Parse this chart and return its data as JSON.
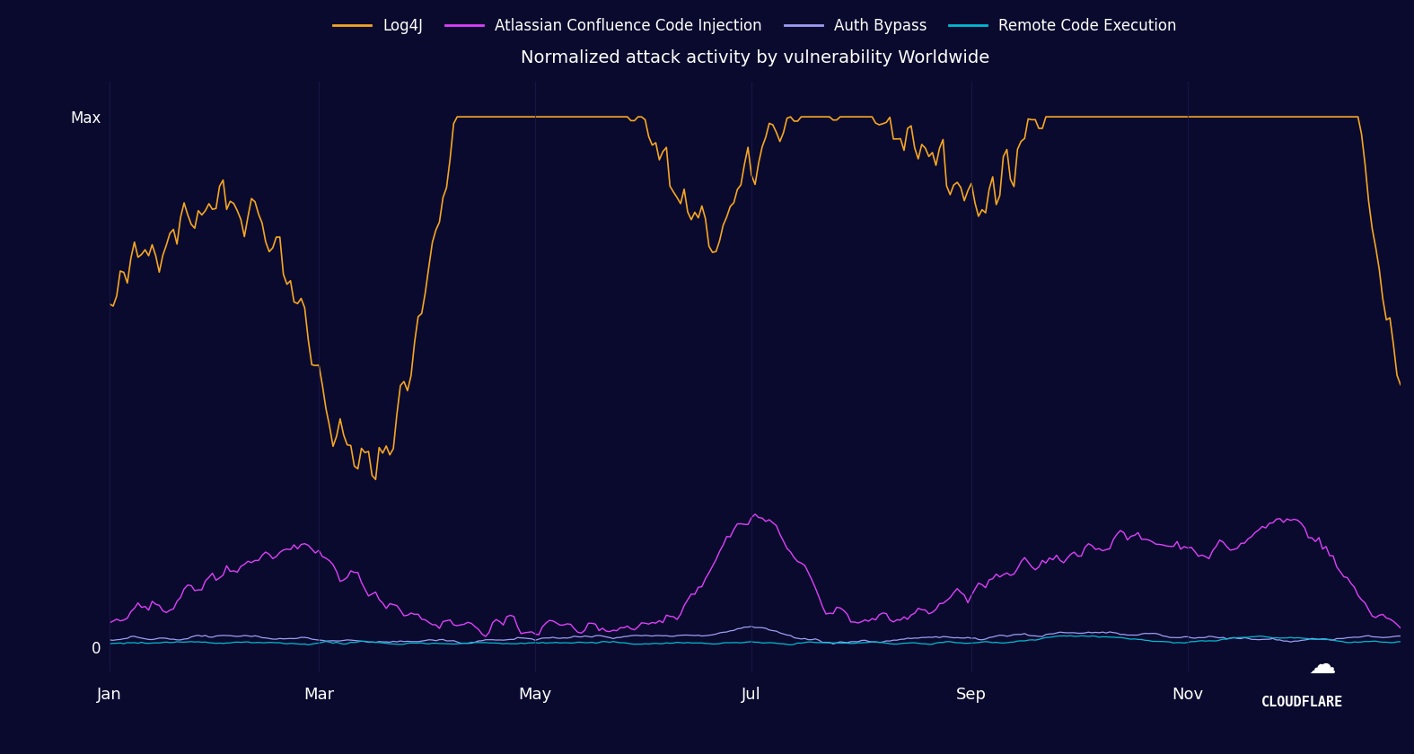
{
  "title": "Normalized attack activity by vulnerability Worldwide",
  "background_color": "#0a0a2e",
  "text_color": "#ffffff",
  "grid_color": "#1a1a4e",
  "legend_entries": [
    "Log4J",
    "Atlassian Confluence Code Injection",
    "Auth Bypass",
    "Remote Code Execution"
  ],
  "line_colors": [
    "#f5a623",
    "#e040fb",
    "#9e9ef5",
    "#00bcd4"
  ],
  "x_tick_labels": [
    "Jan",
    "Mar",
    "May",
    "Jul",
    "Sep",
    "Nov"
  ],
  "y_tick_labels": [
    "0",
    "Max"
  ],
  "n_points": 365
}
